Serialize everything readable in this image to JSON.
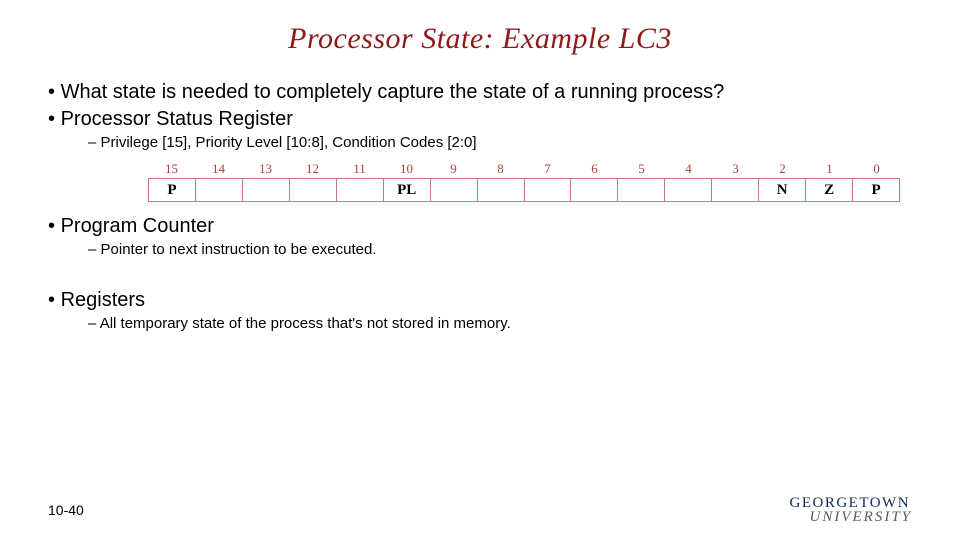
{
  "title": "Processor State: Example LC3",
  "bullets": {
    "q": "What state is needed to completely capture the state of a running process?",
    "psr": "Processor Status Register",
    "psr_sub": "Privilege [15], Priority Level [10:8], Condition Codes [2:0]",
    "pc": "Program Counter",
    "pc_sub": "Pointer to next instruction to be executed.",
    "reg": "Registers",
    "reg_sub": "All temporary state of the process that's not stored in memory."
  },
  "register_diagram": {
    "bit_color": "#a94442",
    "border_color": "#c77",
    "bits": [
      "15",
      "14",
      "13",
      "12",
      "11",
      "10",
      "9",
      "8",
      "7",
      "6",
      "5",
      "4",
      "3",
      "2",
      "1",
      "0"
    ],
    "labels": [
      "P",
      "",
      "",
      "",
      "",
      "PL",
      "",
      "",
      "",
      "",
      "",
      "",
      "",
      "N",
      "Z",
      "P"
    ]
  },
  "page_number": "10-40",
  "logo": {
    "top": "GEORGETOWN",
    "bottom": "UNIVERSITY"
  }
}
